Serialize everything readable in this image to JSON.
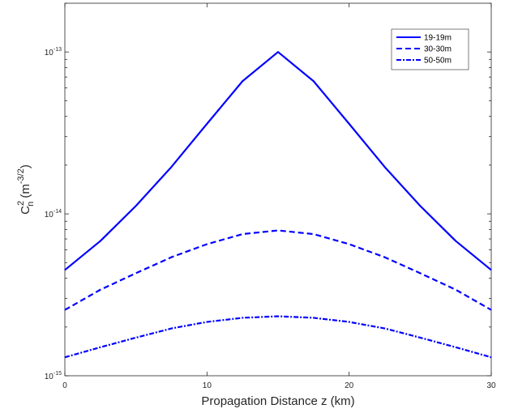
{
  "chart_data": {
    "type": "line",
    "xlabel": "Propagation Distance z (km)",
    "ylabel": {
      "base": "C",
      "superscript": "2",
      "subscript": "n",
      "unit_prefix": " (m",
      "unit_exponent": "-3/2",
      "unit_suffix": ")"
    },
    "xlim": [
      0,
      30
    ],
    "ylim": [
      1e-15,
      2e-13
    ],
    "yscale": "log",
    "x_ticks": [
      "0",
      "10",
      "20",
      "30"
    ],
    "y_ticks": [
      {
        "value": 1e-15,
        "mantissa": "10",
        "exponent": "-15"
      },
      {
        "value": 1e-14,
        "mantissa": "10",
        "exponent": "-14"
      },
      {
        "value": 1e-13,
        "mantissa": "10",
        "exponent": "-13"
      }
    ],
    "grid": false,
    "legend_position": "top-right",
    "x": [
      0,
      2.5,
      5,
      7.5,
      10,
      12.5,
      15,
      17.5,
      20,
      22.5,
      25,
      27.5,
      30
    ],
    "series": [
      {
        "name": "19-19m",
        "style": "solid",
        "color": "#0000ff",
        "values": [
          4.5e-15,
          6.8e-15,
          1.12e-14,
          1.95e-14,
          3.6e-14,
          6.6e-14,
          1e-13,
          6.6e-14,
          3.6e-14,
          1.95e-14,
          1.12e-14,
          6.8e-15,
          4.5e-15
        ]
      },
      {
        "name": "30-30m",
        "style": "dashed",
        "color": "#0000ff",
        "values": [
          2.55e-15,
          3.4e-15,
          4.3e-15,
          5.4e-15,
          6.5e-15,
          7.5e-15,
          7.9e-15,
          7.5e-15,
          6.5e-15,
          5.4e-15,
          4.3e-15,
          3.4e-15,
          2.55e-15
        ]
      },
      {
        "name": "50-50m",
        "style": "dashdot",
        "color": "#0000ff",
        "values": [
          1.3e-15,
          1.5e-15,
          1.72e-15,
          1.96e-15,
          2.15e-15,
          2.28e-15,
          2.33e-15,
          2.28e-15,
          2.15e-15,
          1.96e-15,
          1.72e-15,
          1.5e-15,
          1.3e-15
        ]
      }
    ]
  }
}
